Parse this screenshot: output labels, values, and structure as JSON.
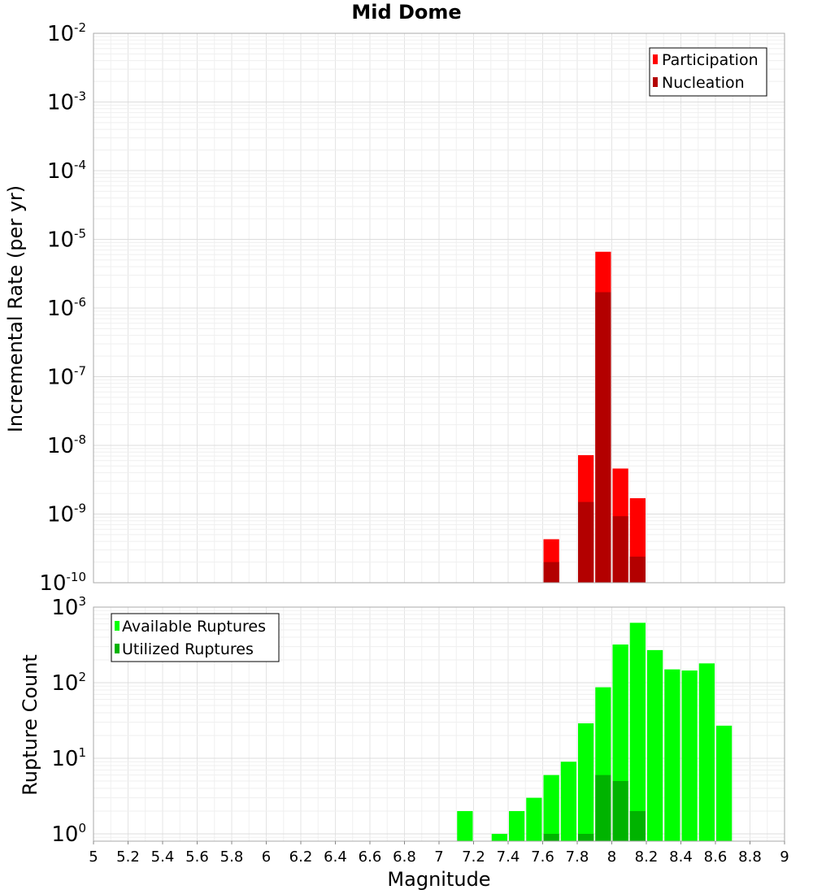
{
  "chart_data": [
    {
      "type": "bar",
      "title": "Mid Dome",
      "xlabel": "",
      "ylabel": "Incremental Rate (per yr)",
      "yscale": "log",
      "xlim": [
        5,
        9
      ],
      "ylim": [
        1e-10,
        0.01
      ],
      "bin_width": 0.1,
      "grid": true,
      "legend_position": "top-right",
      "ytick_labels": [
        {
          "base": "10",
          "exp": "-10"
        },
        {
          "base": "10",
          "exp": "-9"
        },
        {
          "base": "10",
          "exp": "-8"
        },
        {
          "base": "10",
          "exp": "-7"
        },
        {
          "base": "10",
          "exp": "-6"
        },
        {
          "base": "10",
          "exp": "-5"
        },
        {
          "base": "10",
          "exp": "-4"
        },
        {
          "base": "10",
          "exp": "-3"
        },
        {
          "base": "10",
          "exp": "-2"
        }
      ],
      "series": [
        {
          "name": "Participation",
          "color": "#ff0000",
          "x": [
            7.65,
            7.85,
            7.95,
            8.05,
            8.15
          ],
          "values": [
            4.3e-10,
            7.2e-09,
            6.6e-06,
            4.6e-09,
            1.7e-09
          ]
        },
        {
          "name": "Nucleation",
          "color": "#b30000",
          "x": [
            7.65,
            7.85,
            7.95,
            8.05,
            8.15
          ],
          "values": [
            2e-10,
            1.5e-09,
            1.7e-06,
            9.3e-10,
            2.4e-10
          ]
        }
      ]
    },
    {
      "type": "bar",
      "title": "",
      "xlabel": "Magnitude",
      "ylabel": "Rupture Count",
      "yscale": "log",
      "xlim": [
        5,
        9
      ],
      "ylim": [
        0.8,
        1000
      ],
      "bin_width": 0.1,
      "grid": true,
      "legend_position": "top-left",
      "ytick_labels": [
        {
          "base": "10",
          "exp": "0"
        },
        {
          "base": "10",
          "exp": "1"
        },
        {
          "base": "10",
          "exp": "2"
        },
        {
          "base": "10",
          "exp": "3"
        }
      ],
      "xtick_labels": [
        "5",
        "5.2",
        "5.4",
        "5.6",
        "5.8",
        "6",
        "6.2",
        "6.4",
        "6.6",
        "6.8",
        "7",
        "7.2",
        "7.4",
        "7.6",
        "7.8",
        "8",
        "8.2",
        "8.4",
        "8.6",
        "8.8",
        "9"
      ],
      "series": [
        {
          "name": "Available Ruptures",
          "color": "#00ff00",
          "x": [
            7.15,
            7.35,
            7.45,
            7.55,
            7.65,
            7.75,
            7.85,
            7.95,
            8.05,
            8.15,
            8.25,
            8.35,
            8.45,
            8.55,
            8.65
          ],
          "values": [
            2,
            1,
            2,
            3,
            6,
            9,
            29,
            87,
            320,
            620,
            270,
            150,
            145,
            180,
            27
          ]
        },
        {
          "name": "Utilized Ruptures",
          "color": "#00b300",
          "x": [
            7.65,
            7.85,
            7.95,
            8.05,
            8.15
          ],
          "values": [
            1,
            1,
            6,
            5,
            2
          ]
        }
      ]
    }
  ]
}
